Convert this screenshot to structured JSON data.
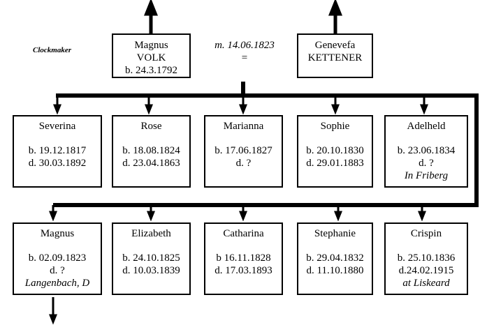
{
  "father": {
    "line1": "Magnus",
    "line2": "VOLK",
    "line3": "b. 24.3.1792",
    "occupation": "Clockmaker"
  },
  "mother": {
    "line1": "Genevefa",
    "line2": "KETTENER"
  },
  "marriage": {
    "date": "m. 14.06.1823",
    "symbol": "="
  },
  "children_row1": [
    {
      "name": "Severina",
      "born": "b. 19.12.1817",
      "died": "d. 30.03.1892",
      "note": ""
    },
    {
      "name": "Rose",
      "born": "b. 18.08.1824",
      "died": "d. 23.04.1863",
      "note": ""
    },
    {
      "name": "Marianna",
      "born": "b. 17.06.1827",
      "died": "d. ?",
      "note": ""
    },
    {
      "name": "Sophie",
      "born": "b. 20.10.1830",
      "died": "d. 29.01.1883",
      "note": ""
    },
    {
      "name": "Adelheld",
      "born": "b. 23.06.1834",
      "died": "d. ?",
      "note": "In Friberg"
    }
  ],
  "children_row2": [
    {
      "name": "Magnus",
      "born": "b. 02.09.1823",
      "died": "d. ?",
      "note": "Langenbach, D"
    },
    {
      "name": "Elizabeth",
      "born": "b. 24.10.1825",
      "died": "d. 10.03.1839",
      "note": ""
    },
    {
      "name": "Catharina",
      "born": "b 16.11.1828",
      "died": "d. 17.03.1893",
      "note": ""
    },
    {
      "name": "Stephanie",
      "born": "b. 29.04.1832",
      "died": "d. 11.10.1880",
      "note": ""
    },
    {
      "name": "Crispin",
      "born": "b. 25.10.1836",
      "died": "d.24.02.1915",
      "note": "at Liskeard"
    }
  ]
}
